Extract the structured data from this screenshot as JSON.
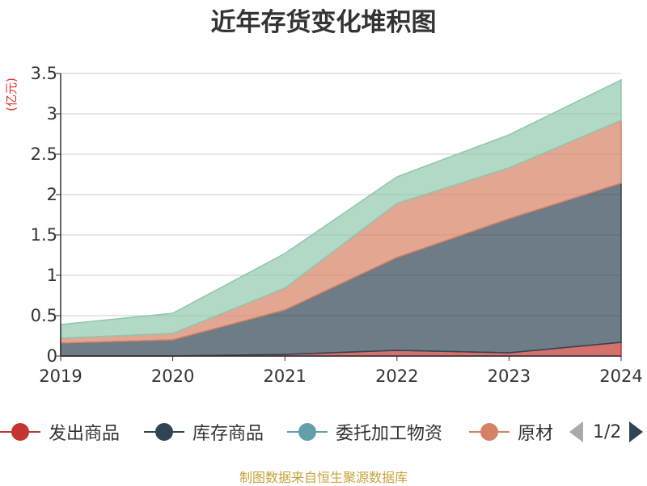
{
  "title": "近年存货变化堆积图",
  "footer": "制图数据来自恒生聚源数据库",
  "legend": {
    "items": [
      {
        "label": "发出商品",
        "color": "#c23531"
      },
      {
        "label": "库存商品",
        "color": "#2f4554"
      },
      {
        "label": "委托加工物资",
        "color": "#61a0a8"
      },
      {
        "label": "原材",
        "color": "#d48265"
      }
    ],
    "page": "1/2"
  },
  "chart_data": {
    "type": "area",
    "stacked": true,
    "title": "近年存货变化堆积图",
    "ylabel": "(亿元)",
    "xlabel": "",
    "x": [
      "2019",
      "2020",
      "2021",
      "2022",
      "2023",
      "2024"
    ],
    "y_ticks": [
      "0",
      "0.5",
      "1",
      "1.5",
      "2",
      "2.5",
      "3",
      "3.5"
    ],
    "ylim": [
      0,
      3.5
    ],
    "grid": true,
    "legend_position": "bottom",
    "series": [
      {
        "name": "发出商品",
        "color": "#c23531",
        "values": [
          0.0,
          0.0,
          0.02,
          0.07,
          0.04,
          0.17
        ]
      },
      {
        "name": "库存商品",
        "color": "#2f4554",
        "values": [
          0.16,
          0.2,
          0.55,
          1.15,
          1.66,
          1.97
        ]
      },
      {
        "name": "委托加工物资",
        "color": "#61a0a8",
        "values": [
          0.0,
          0.0,
          0.0,
          0.0,
          0.0,
          0.0
        ]
      },
      {
        "name": "原材料",
        "color": "#d48265",
        "values": [
          0.06,
          0.08,
          0.27,
          0.67,
          0.63,
          0.78
        ]
      },
      {
        "name": "",
        "color": "#91c7ae",
        "values": [
          0.17,
          0.25,
          0.43,
          0.33,
          0.41,
          0.5
        ]
      }
    ]
  }
}
